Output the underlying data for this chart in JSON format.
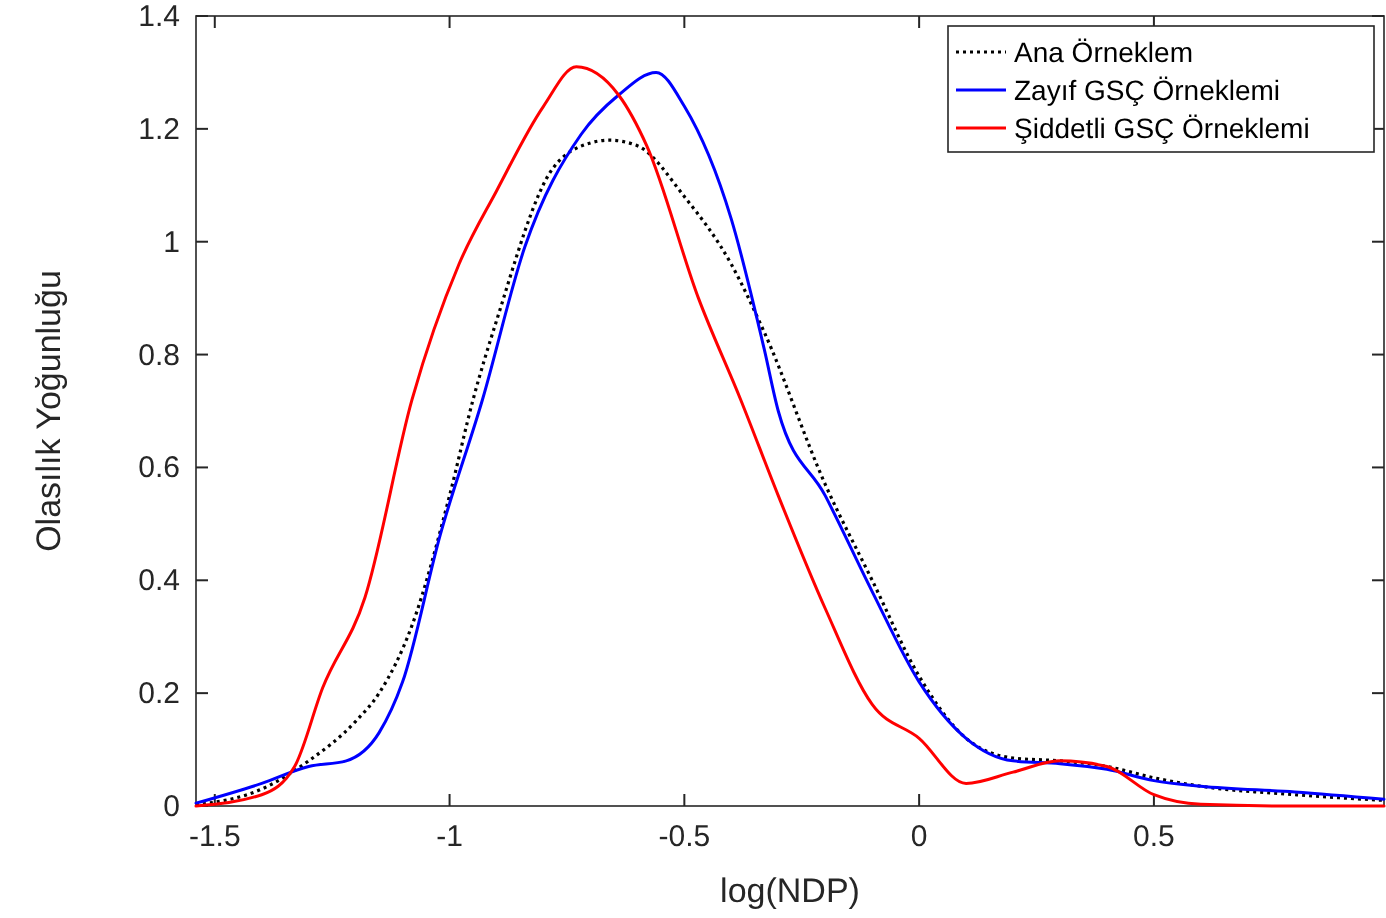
{
  "chart_data": {
    "type": "line",
    "xlabel": "log(NDP)",
    "ylabel": "Olasılık Yoğunluğu",
    "xlim": [
      -1.54,
      0.99
    ],
    "xticks": [
      -1.5,
      -1,
      -0.5,
      0,
      0.5
    ],
    "ylim": [
      0,
      1.4
    ],
    "yticks": [
      0,
      0.2,
      0.4,
      0.6,
      0.8,
      1,
      1.2,
      1.4
    ],
    "grid": false,
    "legend": "top right",
    "marker": "none",
    "series": [
      {
        "name": "Ana Örneklem",
        "color": "#000000",
        "line_style": "dotted",
        "x": [
          -1.54,
          -1.4,
          -1.3,
          -1.2,
          -1.15,
          -1.08,
          -1.0,
          -0.95,
          -0.9,
          -0.78,
          -0.7,
          -0.66,
          -0.6,
          -0.5,
          -0.4,
          -0.33,
          -0.2,
          -0.1,
          0,
          0.1,
          0.2,
          0.3,
          0.4,
          0.5,
          0.6,
          0.8,
          0.99
        ],
        "values": [
          0.002,
          0.03,
          0.08,
          0.15,
          0.2,
          0.32,
          0.55,
          0.72,
          0.86,
          1.13,
          1.175,
          1.18,
          1.17,
          1.08,
          0.96,
          0.84,
          0.57,
          0.4,
          0.23,
          0.12,
          0.085,
          0.08,
          0.07,
          0.05,
          0.035,
          0.02,
          0.01
        ]
      },
      {
        "name": "Zayıf GSÇ Örneklemi",
        "color": "#0000ff",
        "line_style": "solid",
        "x": [
          -1.54,
          -1.4,
          -1.3,
          -1.22,
          -1.15,
          -1.1,
          -1.02,
          -0.93,
          -0.84,
          -0.72,
          -0.64,
          -0.56,
          -0.5,
          -0.4,
          -0.33,
          -0.3,
          -0.2,
          -0.1,
          0,
          0.1,
          0.2,
          0.3,
          0.4,
          0.5,
          0.6,
          0.8,
          0.99
        ],
        "values": [
          0.005,
          0.04,
          0.07,
          0.08,
          0.13,
          0.22,
          0.48,
          0.72,
          0.99,
          1.19,
          1.26,
          1.3,
          1.24,
          1.04,
          0.81,
          0.7,
          0.55,
          0.38,
          0.22,
          0.12,
          0.08,
          0.075,
          0.065,
          0.045,
          0.035,
          0.025,
          0.012
        ]
      },
      {
        "name": "Şiddetli GSÇ Örneklemi",
        "color": "#ff0000",
        "line_style": "solid",
        "x": [
          -1.54,
          -1.4,
          -1.33,
          -1.27,
          -1.18,
          -1.08,
          -0.98,
          -0.9,
          -0.8,
          -0.73,
          -0.64,
          -0.58,
          -0.47,
          -0.38,
          -0.3,
          -0.2,
          -0.1,
          0,
          0.1,
          0.2,
          0.3,
          0.4,
          0.5,
          0.6,
          0.8,
          0.99
        ],
        "values": [
          0.0,
          0.02,
          0.07,
          0.21,
          0.37,
          0.72,
          0.96,
          1.09,
          1.24,
          1.31,
          1.26,
          1.17,
          0.9,
          0.72,
          0.55,
          0.35,
          0.18,
          0.12,
          0.04,
          0.06,
          0.08,
          0.07,
          0.02,
          0.003,
          0.0,
          0.0
        ]
      }
    ]
  }
}
